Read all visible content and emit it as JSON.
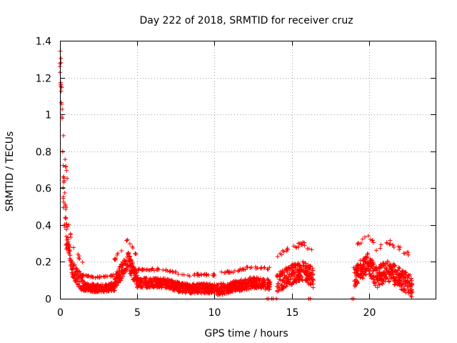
{
  "chart_data": {
    "type": "scatter",
    "title": "Day 222 of 2018, SRMTID for receiver cruz",
    "xlabel": "GPS time / hours",
    "ylabel": "SRMTID / TECUs",
    "xlim": [
      0,
      24.3
    ],
    "ylim": [
      0,
      1.4
    ],
    "xticks": [
      0,
      5,
      10,
      15,
      20
    ],
    "xtick_labels": [
      "0",
      "5",
      "10",
      "15",
      "20"
    ],
    "yticks": [
      0,
      0.2,
      0.4,
      0.6,
      0.8,
      1,
      1.2,
      1.4
    ],
    "ytick_labels": [
      "0",
      "0.2",
      "0.4",
      "0.6",
      "0.8",
      "1",
      "1.2",
      "1.4"
    ],
    "grid": true,
    "marker": "plus",
    "series": [
      {
        "name": "SRMTID",
        "color": "#ff0000",
        "segments": [
          {
            "x_start": 0.0,
            "x_end": 0.5,
            "profile": [
              [
                0.0,
                1.3
              ],
              [
                0.1,
                1.1
              ],
              [
                0.2,
                0.6
              ],
              [
                0.35,
                0.4
              ],
              [
                0.5,
                0.3
              ]
            ],
            "spread": 0.25
          },
          {
            "x_start": 0.5,
            "x_end": 1.5,
            "profile": [
              [
                0.5,
                0.3
              ],
              [
                0.8,
                0.15
              ],
              [
                1.2,
                0.1
              ],
              [
                1.5,
                0.07
              ]
            ],
            "spread": 0.1
          },
          {
            "x_start": 1.5,
            "x_end": 3.5,
            "profile": [
              [
                1.5,
                0.06
              ],
              [
                2.5,
                0.05
              ],
              [
                3.5,
                0.06
              ]
            ],
            "spread": 0.05
          },
          {
            "x_start": 3.5,
            "x_end": 5.0,
            "profile": [
              [
                3.5,
                0.07
              ],
              [
                4.2,
                0.17
              ],
              [
                4.4,
                0.2
              ],
              [
                4.8,
                0.12
              ],
              [
                5.0,
                0.09
              ]
            ],
            "spread": 0.1
          },
          {
            "x_start": 5.0,
            "x_end": 10.0,
            "profile": [
              [
                5.0,
                0.08
              ],
              [
                6.8,
                0.08
              ],
              [
                8.0,
                0.05
              ],
              [
                10.0,
                0.05
              ]
            ],
            "spread": 0.06
          },
          {
            "x_start": 10.0,
            "x_end": 13.6,
            "profile": [
              [
                10.0,
                0.04
              ],
              [
                11.5,
                0.06
              ],
              [
                12.4,
                0.08
              ],
              [
                13.6,
                0.07
              ]
            ],
            "spread": 0.07
          },
          {
            "x_start": 14.0,
            "x_end": 16.4,
            "profile": [
              [
                14.0,
                0.07
              ],
              [
                15.0,
                0.12
              ],
              [
                15.7,
                0.14
              ],
              [
                16.4,
                0.1
              ]
            ],
            "spread": 0.12
          },
          {
            "x_start": 19.0,
            "x_end": 22.8,
            "profile": [
              [
                19.0,
                0.1
              ],
              [
                19.9,
                0.18
              ],
              [
                20.5,
                0.1
              ],
              [
                21.2,
                0.14
              ],
              [
                22.0,
                0.1
              ],
              [
                22.8,
                0.05
              ]
            ],
            "spread": 0.13
          }
        ],
        "zero_points_x": [
          13.4,
          13.5,
          13.7,
          13.8,
          14.0,
          16.1,
          16.2,
          18.9,
          19.0
        ]
      }
    ]
  }
}
